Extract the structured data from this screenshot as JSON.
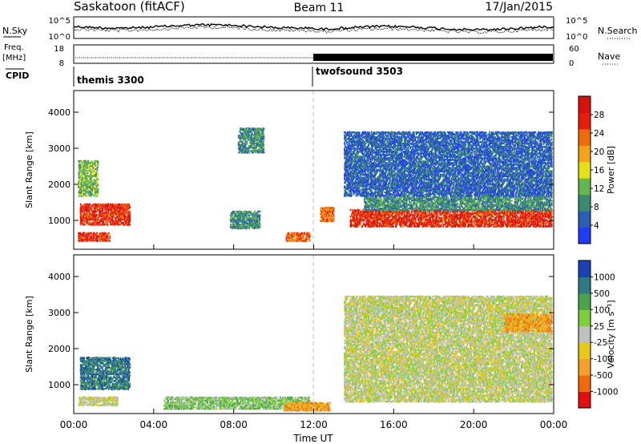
{
  "header": {
    "title": "Saskatoon (fitACF)",
    "beam": "Beam 11",
    "date": "17/Jan/2015"
  },
  "noise_panel": {
    "left_label": "N.Sky",
    "right_label": "N.Search",
    "ticks_left": [
      "10^5",
      "10^0"
    ],
    "ticks_right": [
      "10^5",
      "10^0"
    ]
  },
  "freq_panel": {
    "left_label_1": "Freq.",
    "left_label_2": "[MHz]",
    "ticks_left": [
      "18",
      "8"
    ],
    "right_label": "Nave",
    "ticks_right": [
      "60",
      "0"
    ]
  },
  "cpid": {
    "label": "CPID",
    "segments": [
      {
        "name": "themis 3300",
        "start": 0,
        "end": 12
      },
      {
        "name": "twofsound 3503",
        "start": 12,
        "end": 24
      }
    ]
  },
  "colors": {
    "power": [
      "#1f3df5",
      "#2a5db4",
      "#3a8a6f",
      "#62b84f",
      "#e6e01a",
      "#f4a21a",
      "#f06a0c",
      "#e81c0c",
      "#d6100a"
    ],
    "velocity": [
      "#1b3fb5",
      "#2d7a86",
      "#4aa54a",
      "#7ed03a",
      "#c0c0c0",
      "#e6c81a",
      "#f5a02a",
      "#f06a0c",
      "#e01010"
    ]
  },
  "chart_data": [
    {
      "type": "heatmap",
      "name": "power",
      "ylabel": "Slant Range [km]",
      "yticks": [
        "1000",
        "2000",
        "3000",
        "4000"
      ],
      "ylim": [
        200,
        4600
      ],
      "xlim": [
        0,
        24
      ],
      "colorbar_label": "Power [dB]",
      "colorbar_ticks": [
        "4",
        "8",
        "12",
        "16",
        "20",
        "24",
        "28"
      ],
      "regions": [
        {
          "t0": 0.3,
          "t1": 2.8,
          "r0": 900,
          "r1": 1500,
          "level": 7
        },
        {
          "t0": 0.2,
          "t1": 1.8,
          "r0": 450,
          "r1": 700,
          "level": 7
        },
        {
          "t0": 0.2,
          "t1": 1.2,
          "r0": 1700,
          "r1": 2700,
          "level": 3
        },
        {
          "t0": 8.2,
          "t1": 9.5,
          "r0": 2900,
          "r1": 3600,
          "level": 2
        },
        {
          "t0": 7.8,
          "t1": 9.3,
          "r0": 800,
          "r1": 1300,
          "level": 2
        },
        {
          "t0": 10.6,
          "t1": 11.8,
          "r0": 450,
          "r1": 700,
          "level": 6
        },
        {
          "t0": 12.3,
          "t1": 13.0,
          "r0": 1000,
          "r1": 1400,
          "level": 6
        },
        {
          "t0": 13.8,
          "t1": 23.9,
          "r0": 850,
          "r1": 1350,
          "level": 7
        },
        {
          "t0": 14.5,
          "t1": 23.9,
          "r0": 1300,
          "r1": 1700,
          "level": 2
        },
        {
          "t0": 13.5,
          "t1": 23.9,
          "r0": 1700,
          "r1": 3500,
          "level": 1
        }
      ]
    },
    {
      "type": "heatmap",
      "name": "velocity",
      "ylabel": "Slant Range [km]",
      "yticks": [
        "1000",
        "2000",
        "3000",
        "4000"
      ],
      "ylim": [
        200,
        4600
      ],
      "xlim": [
        0,
        24
      ],
      "colorbar_label": "Velocity [m s⁻¹]",
      "colorbar_ticks": [
        "1000",
        "500",
        "100",
        "25",
        "-25",
        "-100",
        "-500",
        "-1000"
      ],
      "regions": [
        {
          "t0": 0.3,
          "t1": 2.8,
          "r0": 900,
          "r1": 1800,
          "level": 1
        },
        {
          "t0": 0.2,
          "t1": 2.2,
          "r0": 450,
          "r1": 700,
          "level": 4
        },
        {
          "t0": 4.5,
          "t1": 11.8,
          "r0": 350,
          "r1": 700,
          "level": 3
        },
        {
          "t0": 10.5,
          "t1": 12.8,
          "r0": 300,
          "r1": 550,
          "level": 6
        },
        {
          "t0": 13.5,
          "t1": 23.9,
          "r0": 550,
          "r1": 1700,
          "level": 4
        },
        {
          "t0": 13.5,
          "t1": 23.9,
          "r0": 1700,
          "r1": 3500,
          "level": 4
        },
        {
          "t0": 21.5,
          "t1": 23.9,
          "r0": 2500,
          "r1": 3000,
          "level": 6
        }
      ]
    }
  ],
  "xaxis": {
    "label": "Time UT",
    "ticks": [
      "00:00",
      "04:00",
      "08:00",
      "12:00",
      "16:00",
      "20:00",
      "00:00"
    ]
  }
}
